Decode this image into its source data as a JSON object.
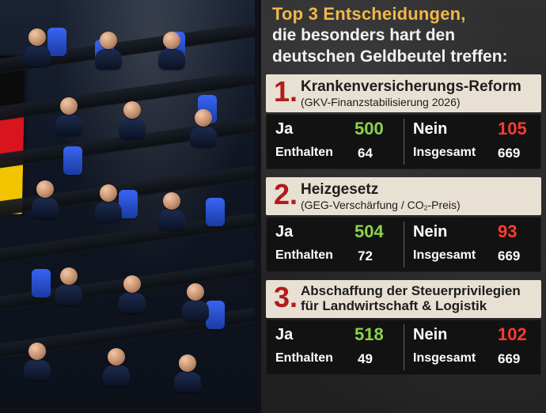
{
  "header": {
    "title_line1": "Top 3 Entscheidungen,",
    "title_line2": "die besonders hart den",
    "title_line3": "deutschen Geldbeutel treffen:"
  },
  "items": [
    {
      "number": "1.",
      "title": "Krankenversicherungs-Reform",
      "subtitle": "(GKV-Finanzstabilisierung 2026)",
      "ja_label": "Ja",
      "ja_value": "500",
      "nein_label": "Nein",
      "nein_value": "105",
      "enthalten_label": "Enthalten",
      "enthalten_value": "64",
      "insgesamt_label": "Insgesamt",
      "insgesamt_value": "669"
    },
    {
      "number": "2.",
      "title": "Heizgesetz",
      "subtitle_prefix": "(GEG-Verschärfung / CO",
      "subtitle_sub": "2",
      "subtitle_suffix": "-Preis)",
      "ja_label": "Ja",
      "ja_value": "504",
      "nein_label": "Nein",
      "nein_value": "93",
      "enthalten_label": "Enthalten",
      "enthalten_value": "72",
      "insgesamt_label": "Insgesamt",
      "insgesamt_value": "669"
    },
    {
      "number": "3.",
      "title_line1": "Abschaffung der Steuerprivilegien",
      "title_line2": "für Landwirtschaft & Logistik",
      "ja_label": "Ja",
      "ja_value": "518",
      "nein_label": "Nein",
      "nein_value": "102",
      "enthalten_label": "Enthalten",
      "enthalten_value": "49",
      "insgesamt_label": "Insgesamt",
      "insgesamt_value": "669"
    }
  ],
  "colors": {
    "title_accent": "#f2b74a",
    "number_red": "#b31b1b",
    "yes_green": "#8bd34a",
    "no_red": "#ff3b30",
    "section_head_bg": "#e8e0d2",
    "stats_bg": "#121212"
  }
}
